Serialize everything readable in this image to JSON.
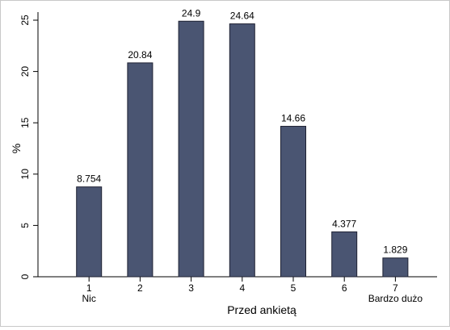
{
  "chart_data": {
    "type": "bar",
    "title": "",
    "xlabel": "Przed ankietą",
    "ylabel": "%",
    "categories": [
      "1",
      "2",
      "3",
      "4",
      "5",
      "6",
      "7"
    ],
    "category_sublabels": [
      "Nic",
      "",
      "",
      "",
      "",
      "",
      "Bardzo dużo"
    ],
    "values": [
      8.754,
      20.84,
      24.9,
      24.64,
      14.66,
      4.377,
      1.829
    ],
    "value_labels": [
      "8.754",
      "20.84",
      "24.9",
      "24.64",
      "14.66",
      "4.377",
      "1.829"
    ],
    "ylim": [
      0,
      25
    ],
    "yticks": [
      0,
      5,
      10,
      15,
      20,
      25
    ],
    "xlim": [
      0,
      7.5
    ],
    "grid": false,
    "legend": "none",
    "colors": {
      "bar_fill": "#4a5572",
      "bar_stroke": "#1f2233",
      "axis": "#000000"
    }
  }
}
